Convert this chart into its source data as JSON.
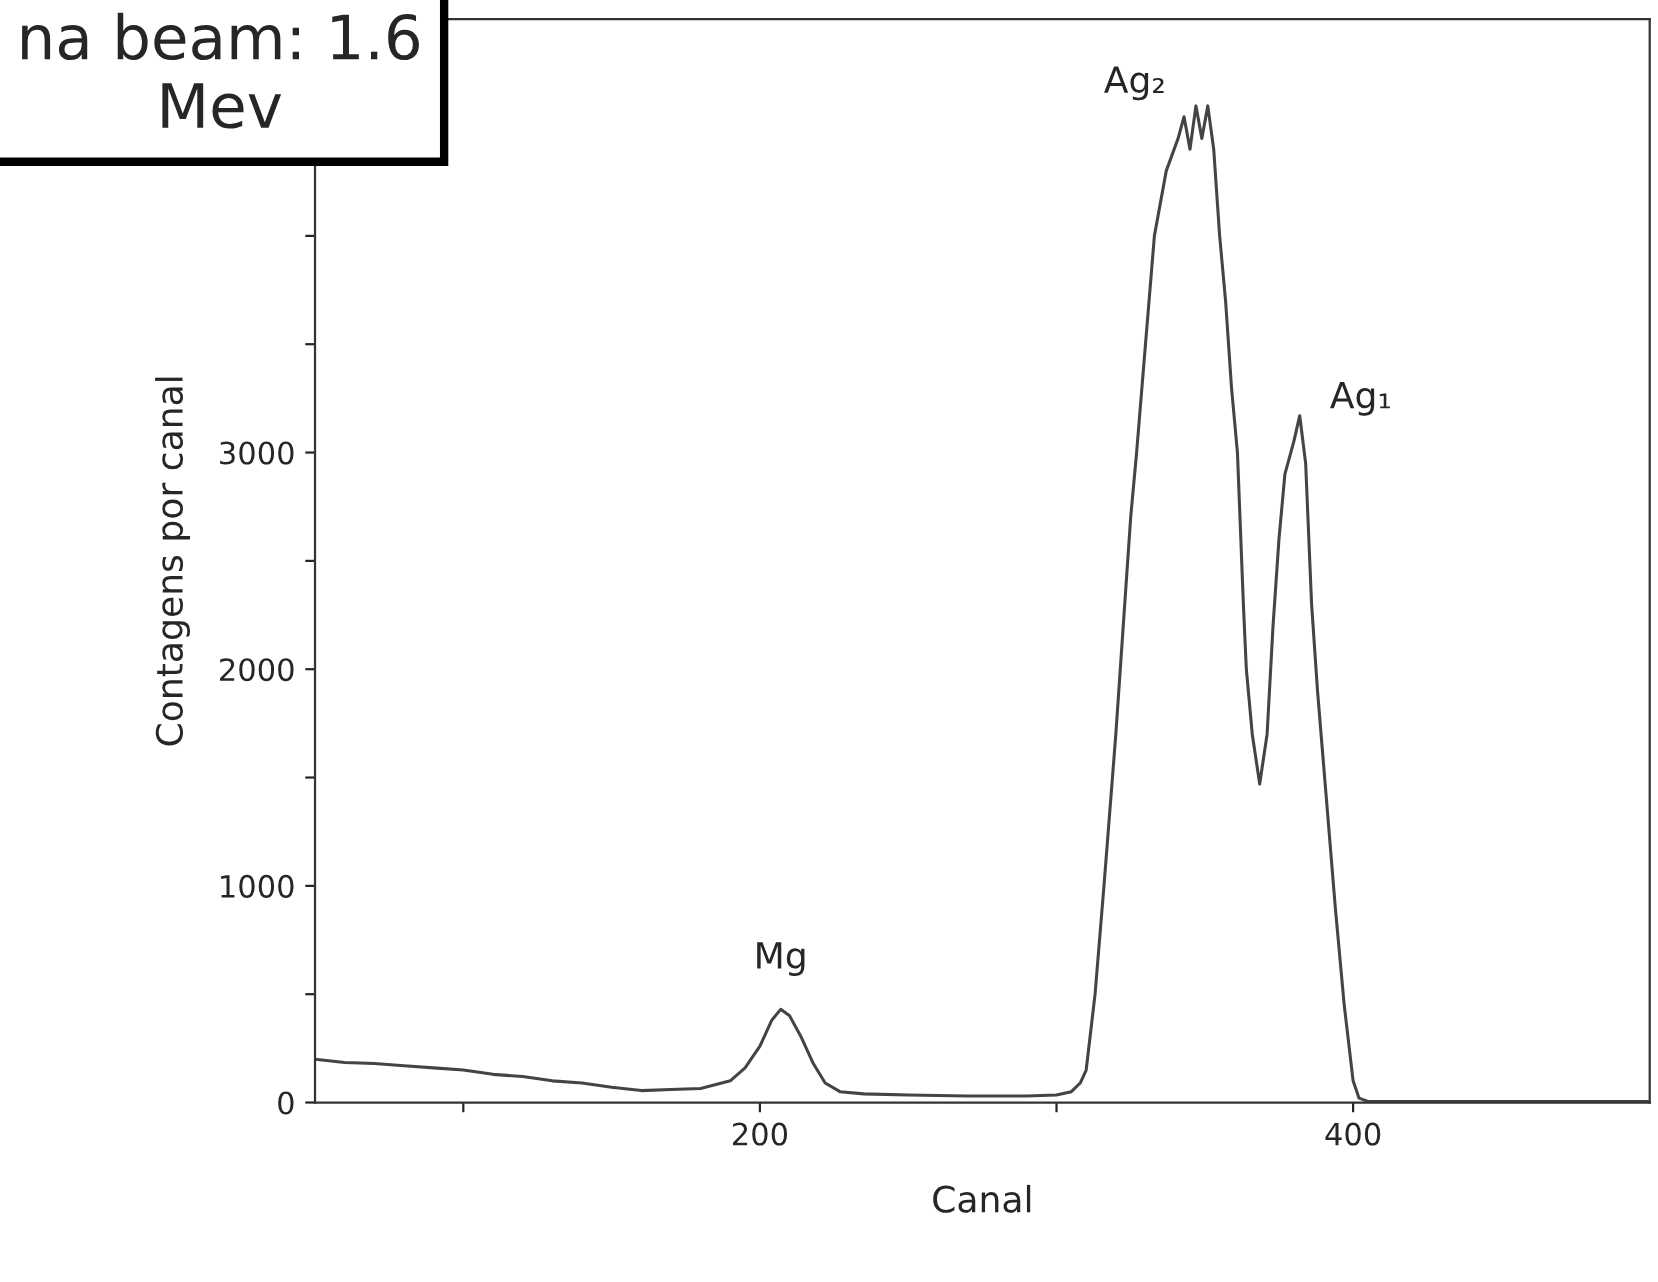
{
  "chart_data": {
    "type": "line",
    "xlabel": "Canal",
    "ylabel": "Contagens por canal",
    "x": [
      50,
      60,
      70,
      80,
      90,
      100,
      110,
      120,
      130,
      140,
      150,
      160,
      170,
      180,
      190,
      195,
      200,
      204,
      207,
      210,
      214,
      218,
      222,
      227,
      235,
      250,
      270,
      290,
      300,
      305,
      308,
      310,
      313,
      316,
      320,
      323,
      325,
      327,
      330,
      333,
      337,
      341,
      343,
      345,
      347,
      349,
      351,
      353,
      355,
      357,
      359,
      361,
      363,
      364,
      366,
      368.5,
      371,
      373,
      375,
      377,
      380,
      382,
      384,
      386,
      388,
      391,
      394,
      397,
      400,
      402,
      405,
      420,
      440,
      460,
      480,
      500
    ],
    "series": [
      {
        "color": "#444444",
        "values": [
          200,
          185,
          180,
          170,
          160,
          150,
          130,
          120,
          100,
          90,
          70,
          55,
          60,
          65,
          100,
          160,
          260,
          380,
          430,
          400,
          300,
          180,
          90,
          50,
          40,
          35,
          30,
          30,
          35,
          50,
          90,
          150,
          500,
          1000,
          1700,
          2300,
          2700,
          3000,
          3500,
          4000,
          4300,
          4450,
          4550,
          4400,
          4600,
          4450,
          4600,
          4400,
          4000,
          3700,
          3300,
          3000,
          2300,
          2000,
          1700,
          1470,
          1700,
          2200,
          2600,
          2900,
          3050,
          3170,
          2950,
          2300,
          1900,
          1400,
          900,
          450,
          100,
          20,
          5,
          5,
          5,
          5,
          5,
          5
        ]
      }
    ],
    "xlim": [
      50,
      500
    ],
    "xticks": [
      {
        "value": 100,
        "label": null
      },
      200,
      {
        "value": 300,
        "label": null
      },
      400
    ],
    "ylim": [
      0,
      5000
    ],
    "yticks": [
      0,
      {
        "value": 500,
        "label": null
      },
      1000,
      {
        "value": 1500,
        "label": null
      },
      2000,
      {
        "value": 2500,
        "label": null
      },
      3000,
      {
        "value": 3500,
        "label": null
      },
      {
        "value": 4000,
        "label": null
      }
    ],
    "grid": false,
    "legend": false,
    "line_style": "solid",
    "marker": "none",
    "annotations": [
      {
        "text": "Ag₂",
        "x": 347,
        "y": 4600
      },
      {
        "text": "Ag₁",
        "x": 382,
        "y": 3170
      },
      {
        "text": "Mg",
        "x": 207,
        "y": 430
      },
      "na beam: 1.6\nMev"
    ]
  }
}
